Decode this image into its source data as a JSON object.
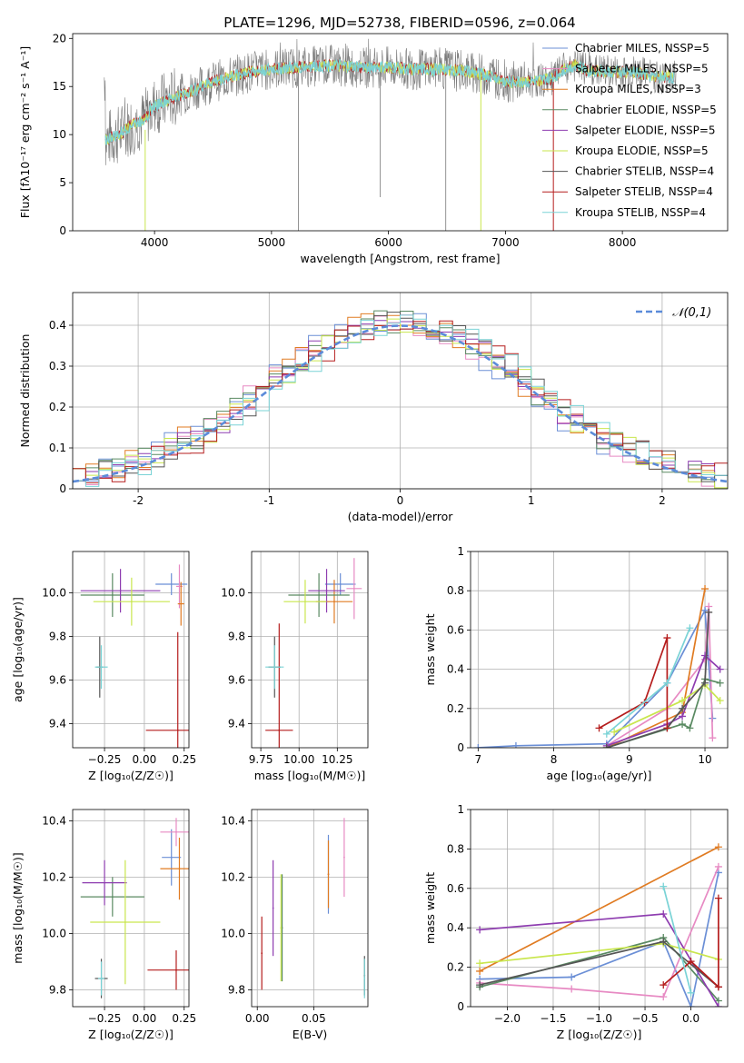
{
  "title": "PLATE=1296, MJD=52738, FIBERID=0596, z=0.064",
  "colors": {
    "chab_miles": "#6b8fd6",
    "salp_miles": "#e78ac3",
    "krou_miles": "#e07b22",
    "chab_elodie": "#5a8a62",
    "salp_elodie": "#8e3db0",
    "krou_elodie": "#c9e64e",
    "chab_stelib": "#555555",
    "salp_stelib": "#b51d1d",
    "krou_stelib": "#7ad3d6",
    "gauss": "#5b8bd9"
  },
  "chart_data": [
    {
      "type": "line",
      "xlabel": "wavelength [Angstrom, rest frame]",
      "ylabel": "Flux [fλ10⁻¹⁷ erg cm⁻² s⁻¹ A⁻¹]",
      "xlim": [
        3300,
        8900
      ],
      "ylim": [
        0,
        20.5
      ],
      "xticks": [
        4000,
        5000,
        6000,
        7000,
        8000
      ],
      "yticks": [
        0,
        5,
        10,
        15,
        20
      ],
      "grid": false,
      "legend_position": "right",
      "series": [
        {
          "name": "Chabrier MILES, NSSP=5",
          "color_key": "chab_miles"
        },
        {
          "name": "Salpeter MILES, NSSP=5",
          "color_key": "salp_miles"
        },
        {
          "name": "Kroupa MILES, NSSP=3",
          "color_key": "krou_miles"
        },
        {
          "name": "Chabrier ELODIE, NSSP=5",
          "color_key": "chab_elodie"
        },
        {
          "name": "Salpeter ELODIE, NSSP=5",
          "color_key": "salp_elodie"
        },
        {
          "name": "Kroupa ELODIE, NSSP=5",
          "color_key": "krou_elodie"
        },
        {
          "name": "Chabrier STELIB, NSSP=4",
          "color_key": "chab_stelib"
        },
        {
          "name": "Salpeter STELIB, NSSP=4",
          "color_key": "salp_stelib"
        },
        {
          "name": "Kroupa STELIB, NSSP=4",
          "color_key": "krou_stelib"
        }
      ],
      "continuum": [
        [
          3580,
          9.5
        ],
        [
          3700,
          10.0
        ],
        [
          3800,
          11.0
        ],
        [
          3900,
          11.5
        ],
        [
          4000,
          13.0
        ],
        [
          4100,
          13.5
        ],
        [
          4300,
          14.5
        ],
        [
          4500,
          15.5
        ],
        [
          4800,
          16.5
        ],
        [
          5000,
          16.8
        ],
        [
          5200,
          17.0
        ],
        [
          5500,
          17.2
        ],
        [
          5800,
          17.0
        ],
        [
          6000,
          17.0
        ],
        [
          6200,
          16.8
        ],
        [
          6500,
          16.8
        ],
        [
          6700,
          16.5
        ],
        [
          6900,
          16.0
        ],
        [
          7000,
          15.5
        ],
        [
          7200,
          15.5
        ],
        [
          7400,
          15.8
        ],
        [
          7500,
          16.8
        ],
        [
          7600,
          17.2
        ],
        [
          7700,
          16.7
        ],
        [
          7900,
          16.5
        ],
        [
          8100,
          16.5
        ],
        [
          8300,
          16.0
        ],
        [
          8450,
          16.0
        ]
      ],
      "model_cutoffs": [
        {
          "x": 3920,
          "y0": 0,
          "y1": 10.5,
          "color_key": "krou_elodie"
        },
        {
          "x": 6790,
          "y0": 0,
          "y1": 16.5,
          "color_key": "krou_elodie"
        },
        {
          "x": 7410,
          "y0": 0,
          "y1": 15.5,
          "color_key": "salp_stelib"
        }
      ],
      "absorption_dips": [
        {
          "x": 5230,
          "y": 0
        },
        {
          "x": 5930,
          "y": 3.5
        },
        {
          "x": 6490,
          "y": 0
        }
      ]
    },
    {
      "type": "histogram",
      "xlabel": "(data-model)/error",
      "ylabel": "Normed distribution",
      "xlim": [
        -2.5,
        2.5
      ],
      "ylim": [
        0,
        0.48
      ],
      "xticks": [
        -2,
        -1,
        0,
        1,
        2
      ],
      "yticks": [
        0.0,
        0.1,
        0.2,
        0.3,
        0.4
      ],
      "grid": true,
      "bin_width": 0.1,
      "legend": [
        {
          "label": "𝒩(0,1)",
          "color_key": "gauss",
          "style": "dashed"
        }
      ],
      "reference_curve": {
        "name": "N(0,1)",
        "mean": 0,
        "sigma": 1
      },
      "series_color_keys": [
        "chab_miles",
        "salp_miles",
        "krou_miles",
        "chab_elodie",
        "salp_elodie",
        "krou_elodie",
        "chab_stelib",
        "salp_stelib",
        "krou_stelib"
      ]
    },
    {
      "type": "scatter",
      "xlabel": "Z [log₁₀(Z/Z☉)]",
      "ylabel": "age  [log₁₀(age/yr)]",
      "xlim": [
        -0.45,
        0.28
      ],
      "ylim": [
        9.29,
        10.19
      ],
      "xticks": [
        -0.25,
        0.0,
        0.25
      ],
      "xticklabels": [
        "−0.25",
        "0.00",
        "0.25"
      ],
      "yticks": [
        9.4,
        9.6,
        9.8,
        10.0
      ],
      "yticklabels": [
        "9.4",
        "9.6",
        "9.8",
        "10.0"
      ],
      "grid": true,
      "points": [
        {
          "x": 0.17,
          "y": 10.04,
          "xerr": 0.1,
          "yerr": 0.05,
          "color_key": "chab_miles"
        },
        {
          "x": 0.22,
          "y": 10.03,
          "xerr": 0.02,
          "yerr": 0.1,
          "color_key": "salp_miles"
        },
        {
          "x": 0.23,
          "y": 9.95,
          "xerr": 0.02,
          "yerr": 0.1,
          "color_key": "krou_miles"
        },
        {
          "x": -0.2,
          "y": 9.99,
          "xerr": 0.2,
          "yerr": 0.1,
          "color_key": "chab_elodie"
        },
        {
          "x": -0.15,
          "y": 10.01,
          "xerr": 0.25,
          "yerr": 0.1,
          "color_key": "salp_elodie"
        },
        {
          "x": -0.08,
          "y": 9.96,
          "xerr": 0.24,
          "yerr": 0.11,
          "color_key": "krou_elodie"
        },
        {
          "x": -0.28,
          "y": 9.66,
          "xerr": 0.02,
          "yerr": 0.14,
          "color_key": "chab_stelib"
        },
        {
          "x": 0.21,
          "y": 9.37,
          "xerr": 0.2,
          "yerr": 0.45,
          "color_key": "salp_stelib"
        },
        {
          "x": -0.27,
          "y": 9.66,
          "xerr": 0.04,
          "yerr": 0.1,
          "color_key": "krou_stelib"
        }
      ]
    },
    {
      "type": "scatter",
      "xlabel": "mass [log₁₀(M/M☉)]",
      "ylabel": "",
      "xlim": [
        9.69,
        10.45
      ],
      "ylim": [
        9.29,
        10.19
      ],
      "xticks": [
        9.75,
        10.0,
        10.25
      ],
      "xticklabels": [
        "9.75",
        "10.00",
        "10.25"
      ],
      "yticks": [
        9.4,
        9.6,
        9.8,
        10.0
      ],
      "yticklabels": [
        "9.4",
        "9.6",
        "9.8",
        "10.0"
      ],
      "grid": true,
      "points": [
        {
          "x": 10.27,
          "y": 10.04,
          "xerr": 0.1,
          "yerr": 0.05,
          "color_key": "chab_miles"
        },
        {
          "x": 10.36,
          "y": 10.02,
          "xerr": 0.05,
          "yerr": 0.14,
          "color_key": "salp_miles"
        },
        {
          "x": 10.23,
          "y": 9.96,
          "xerr": 0.12,
          "yerr": 0.1,
          "color_key": "krou_miles"
        },
        {
          "x": 10.13,
          "y": 9.99,
          "xerr": 0.2,
          "yerr": 0.1,
          "color_key": "chab_elodie"
        },
        {
          "x": 10.18,
          "y": 10.01,
          "xerr": 0.12,
          "yerr": 0.1,
          "color_key": "salp_elodie"
        },
        {
          "x": 10.04,
          "y": 9.96,
          "xerr": 0.14,
          "yerr": 0.1,
          "color_key": "krou_elodie"
        },
        {
          "x": 9.84,
          "y": 9.66,
          "xerr": 0.04,
          "yerr": 0.14,
          "color_key": "chab_stelib"
        },
        {
          "x": 9.87,
          "y": 9.37,
          "xerr": 0.09,
          "yerr": 0.49,
          "color_key": "salp_stelib"
        },
        {
          "x": 9.84,
          "y": 9.66,
          "xerr": 0.06,
          "yerr": 0.1,
          "color_key": "krou_stelib"
        }
      ]
    },
    {
      "type": "line",
      "xlabel": "age  [log₁₀(age/yr)]",
      "ylabel": "mass weight",
      "xlim": [
        6.9,
        10.3
      ],
      "ylim": [
        0,
        1.0
      ],
      "xticks": [
        7,
        8,
        9,
        10
      ],
      "yticks": [
        0.0,
        0.2,
        0.4,
        0.6,
        0.8,
        1.0
      ],
      "grid": true,
      "series": [
        {
          "color_key": "chab_miles",
          "x": [
            7.0,
            7.5,
            8.7,
            9.5,
            10.0,
            10.1
          ],
          "y": [
            0.0,
            0.01,
            0.02,
            0.33,
            0.7,
            0.15
          ]
        },
        {
          "color_key": "salp_miles",
          "x": [
            8.7,
            9.5,
            10.0,
            10.05,
            10.1
          ],
          "y": [
            0.01,
            0.2,
            0.45,
            0.72,
            0.05
          ]
        },
        {
          "color_key": "krou_miles",
          "x": [
            8.7,
            9.7,
            10.0
          ],
          "y": [
            0.0,
            0.18,
            0.81
          ]
        },
        {
          "color_key": "chab_elodie",
          "x": [
            8.7,
            9.7,
            9.8,
            10.0,
            10.2
          ],
          "y": [
            0.0,
            0.12,
            0.1,
            0.35,
            0.33
          ]
        },
        {
          "color_key": "salp_elodie",
          "x": [
            8.7,
            9.5,
            9.7,
            10.0,
            10.2
          ],
          "y": [
            0.01,
            0.12,
            0.16,
            0.47,
            0.4
          ]
        },
        {
          "color_key": "krou_elodie",
          "x": [
            8.8,
            9.7,
            10.0,
            10.2
          ],
          "y": [
            0.08,
            0.24,
            0.32,
            0.24
          ]
        },
        {
          "color_key": "chab_stelib",
          "x": [
            8.7,
            9.5,
            9.7,
            10.0,
            10.05
          ],
          "y": [
            0.0,
            0.1,
            0.2,
            0.33,
            0.69
          ]
        },
        {
          "color_key": "salp_stelib",
          "x": [
            8.6,
            9.2,
            9.5,
            9.5
          ],
          "y": [
            0.1,
            0.23,
            0.56,
            0.1
          ]
        },
        {
          "color_key": "krou_stelib",
          "x": [
            8.7,
            9.5,
            9.8
          ],
          "y": [
            0.07,
            0.33,
            0.61
          ]
        }
      ]
    },
    {
      "type": "scatter",
      "xlabel": "Z [log₁₀(Z/Z☉)]",
      "ylabel": "mass [log₁₀(M/M☉)]",
      "xlim": [
        -0.45,
        0.28
      ],
      "ylim": [
        9.74,
        10.44
      ],
      "xticks": [
        -0.25,
        0.0,
        0.25
      ],
      "xticklabels": [
        "−0.25",
        "0.00",
        "0.25"
      ],
      "yticks": [
        9.8,
        10.0,
        10.2,
        10.4
      ],
      "yticklabels": [
        "9.8",
        "10.0",
        "10.2",
        "10.4"
      ],
      "grid": true,
      "points": [
        {
          "x": 0.17,
          "y": 10.27,
          "xerr": 0.06,
          "yerr": 0.1,
          "color_key": "chab_miles"
        },
        {
          "x": 0.2,
          "y": 10.36,
          "xerr": 0.1,
          "yerr": 0.05,
          "color_key": "salp_miles"
        },
        {
          "x": 0.22,
          "y": 10.23,
          "xerr": 0.12,
          "yerr": 0.11,
          "color_key": "krou_miles"
        },
        {
          "x": -0.2,
          "y": 10.13,
          "xerr": 0.2,
          "yerr": 0.07,
          "color_key": "chab_elodie"
        },
        {
          "x": -0.25,
          "y": 10.18,
          "xerr": 0.14,
          "yerr": 0.08,
          "color_key": "salp_elodie"
        },
        {
          "x": -0.12,
          "y": 10.04,
          "xerr": 0.22,
          "yerr": 0.22,
          "color_key": "krou_elodie"
        },
        {
          "x": -0.27,
          "y": 9.84,
          "xerr": 0.04,
          "yerr": 0.07,
          "color_key": "chab_stelib"
        },
        {
          "x": 0.2,
          "y": 9.87,
          "xerr": 0.18,
          "yerr": 0.07,
          "color_key": "salp_stelib"
        },
        {
          "x": -0.27,
          "y": 9.84,
          "xerr": 0.02,
          "yerr": 0.06,
          "color_key": "krou_stelib"
        }
      ]
    },
    {
      "type": "scatter",
      "xlabel": "E(B-V)",
      "ylabel": "",
      "xlim": [
        -0.005,
        0.098
      ],
      "ylim": [
        9.74,
        10.44
      ],
      "xticks": [
        0.0,
        0.05
      ],
      "xticklabels": [
        "0.00",
        "0.05"
      ],
      "yticks": [
        9.8,
        10.0,
        10.2,
        10.4
      ],
      "yticklabels": [
        "9.8",
        "10.0",
        "10.2",
        "10.4"
      ],
      "grid": true,
      "points": [
        {
          "x": 0.063,
          "y": 10.21,
          "xerr": 0,
          "yerr": 0.14,
          "color_key": "chab_miles"
        },
        {
          "x": 0.077,
          "y": 10.27,
          "xerr": 0,
          "yerr": 0.14,
          "color_key": "salp_miles"
        },
        {
          "x": 0.063,
          "y": 10.21,
          "xerr": 0,
          "yerr": 0.12,
          "color_key": "krou_miles"
        },
        {
          "x": 0.022,
          "y": 10.02,
          "xerr": 0,
          "yerr": 0.19,
          "color_key": "chab_elodie"
        },
        {
          "x": 0.014,
          "y": 10.09,
          "xerr": 0,
          "yerr": 0.17,
          "color_key": "salp_elodie"
        },
        {
          "x": 0.021,
          "y": 10.02,
          "xerr": 0,
          "yerr": 0.19,
          "color_key": "krou_elodie"
        },
        {
          "x": 0.095,
          "y": 9.85,
          "xerr": 0,
          "yerr": 0.07,
          "color_key": "chab_stelib"
        },
        {
          "x": 0.004,
          "y": 9.93,
          "xerr": 0,
          "yerr": 0.13,
          "color_key": "salp_stelib"
        },
        {
          "x": 0.095,
          "y": 9.84,
          "xerr": 0,
          "yerr": 0.07,
          "color_key": "krou_stelib"
        }
      ]
    },
    {
      "type": "line",
      "xlabel": "Z [log₁₀(Z/Z☉)]",
      "ylabel": "mass weight",
      "xlim": [
        -2.4,
        0.4
      ],
      "ylim": [
        0,
        1.0
      ],
      "xticks": [
        -2.0,
        -1.5,
        -1.0,
        -0.5,
        0.0
      ],
      "xticklabels": [
        "−2.0",
        "−1.5",
        "−1.0",
        "−0.5",
        "0.0"
      ],
      "yticks": [
        0.0,
        0.2,
        0.4,
        0.6,
        0.8,
        1.0
      ],
      "grid": true,
      "series": [
        {
          "color_key": "chab_miles",
          "x": [
            -2.3,
            -1.3,
            -0.3,
            0.0,
            0.3
          ],
          "y": [
            0.14,
            0.15,
            0.33,
            0.0,
            0.68
          ]
        },
        {
          "color_key": "salp_miles",
          "x": [
            -2.3,
            -1.3,
            -0.3,
            0.3
          ],
          "y": [
            0.12,
            0.09,
            0.05,
            0.71
          ]
        },
        {
          "color_key": "krou_miles",
          "x": [
            -2.3,
            0.3
          ],
          "y": [
            0.18,
            0.81
          ]
        },
        {
          "color_key": "chab_elodie",
          "x": [
            -2.3,
            -0.3,
            0.3
          ],
          "y": [
            0.1,
            0.35,
            0.03
          ]
        },
        {
          "color_key": "salp_elodie",
          "x": [
            -2.3,
            -0.3,
            0.3
          ],
          "y": [
            0.39,
            0.47,
            0.0
          ]
        },
        {
          "color_key": "krou_elodie",
          "x": [
            -2.3,
            -0.3,
            0.3
          ],
          "y": [
            0.22,
            0.32,
            0.24
          ]
        },
        {
          "color_key": "chab_stelib",
          "x": [
            -2.3,
            -0.3,
            0.3
          ],
          "y": [
            0.11,
            0.33,
            0.1
          ]
        },
        {
          "color_key": "salp_stelib",
          "x": [
            -0.3,
            0.0,
            0.3,
            0.3
          ],
          "y": [
            0.11,
            0.23,
            0.1,
            0.55
          ]
        },
        {
          "color_key": "krou_stelib",
          "x": [
            -0.3,
            0.0
          ],
          "y": [
            0.61,
            0.07
          ]
        }
      ]
    }
  ]
}
